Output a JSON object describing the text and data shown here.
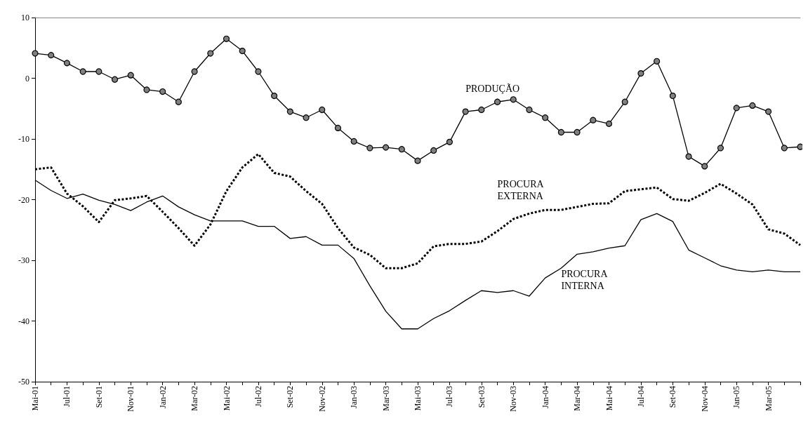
{
  "chart_data": {
    "type": "line",
    "categories": [
      "Mai-01",
      null,
      "Jul-01",
      null,
      "Set-01",
      null,
      "Nov-01",
      null,
      "Jan-02",
      null,
      "Mar-02",
      null,
      "Mai-02",
      null,
      "Jul-02",
      null,
      "Set-02",
      null,
      "Nov-02",
      null,
      "Jan-03",
      null,
      "Mar-03",
      null,
      "Mai-03",
      null,
      "Jul-03",
      null,
      "Set-03",
      null,
      "Nov-03",
      null,
      "Jan-04",
      null,
      "Mar-04",
      null,
      "Mai-04",
      null,
      "Jul-04",
      null,
      "Set-04",
      null,
      "Nov-04",
      null,
      "Jan-05",
      null,
      "Mar-05",
      null,
      null
    ],
    "series": [
      {
        "name": "PRODUÇÃO",
        "color": "#000000",
        "marker": "circle",
        "line_style": "solid",
        "values": [
          4.1,
          3.8,
          2.5,
          1.1,
          1.1,
          -0.2,
          0.5,
          -1.9,
          -2.2,
          -3.9,
          1.1,
          4.1,
          6.5,
          4.5,
          1.1,
          -2.9,
          -5.5,
          -6.5,
          -5.2,
          -8.2,
          -10.4,
          -11.5,
          -11.4,
          -11.7,
          -13.6,
          -11.9,
          -10.5,
          -5.5,
          -5.2,
          -3.9,
          -3.5,
          -5.2,
          -6.5,
          -8.9,
          -8.9,
          -6.9,
          -7.5,
          -3.9,
          0.8,
          2.8,
          -2.9,
          -12.9,
          -14.5,
          -11.5,
          -4.9,
          -4.5,
          -5.5,
          -11.5,
          -11.3
        ]
      },
      {
        "name": "PROCURA EXTERNA",
        "color": "#000000",
        "marker": "none",
        "line_style": "dashed",
        "values": [
          -15.0,
          -14.7,
          -19.0,
          -21.1,
          -23.7,
          -20.1,
          -19.8,
          -19.4,
          -22.0,
          -24.7,
          -27.6,
          -24.1,
          -18.6,
          -14.7,
          -12.5,
          -15.6,
          -16.2,
          -18.6,
          -20.7,
          -24.7,
          -27.9,
          -29.1,
          -31.3,
          -31.3,
          -30.5,
          -27.7,
          -27.3,
          -27.3,
          -26.9,
          -25.2,
          -23.2,
          -22.3,
          -21.7,
          -21.7,
          -21.2,
          -20.7,
          -20.6,
          -18.6,
          -18.3,
          -18.0,
          -19.9,
          -20.2,
          -18.9,
          -17.4,
          -19.0,
          -20.8,
          -24.9,
          -25.6,
          -27.5
        ]
      },
      {
        "name": "PROCURA INTERNA",
        "color": "#000000",
        "marker": "none",
        "line_style": "solid",
        "values": [
          -16.8,
          -18.5,
          -19.8,
          -19.1,
          -20.1,
          -20.8,
          -21.8,
          -20.4,
          -19.4,
          -21.2,
          -22.5,
          -23.5,
          -23.5,
          -23.5,
          -24.4,
          -24.4,
          -26.4,
          -26.1,
          -27.5,
          -27.5,
          -29.7,
          -34.2,
          -38.4,
          -41.3,
          -41.3,
          -39.6,
          -38.3,
          -36.6,
          -35.0,
          -35.3,
          -35.0,
          -35.9,
          -32.9,
          -31.3,
          -29.0,
          -28.6,
          -28.0,
          -27.6,
          -23.3,
          -22.3,
          -23.6,
          -28.3,
          -29.6,
          -30.9,
          -31.6,
          -31.9,
          -31.6,
          -31.9,
          -31.9
        ]
      }
    ],
    "ylim": [
      -50,
      10
    ],
    "yticks": [
      -50,
      -40,
      -30,
      -20,
      -10,
      0,
      10
    ],
    "grid": false,
    "legend": false
  }
}
